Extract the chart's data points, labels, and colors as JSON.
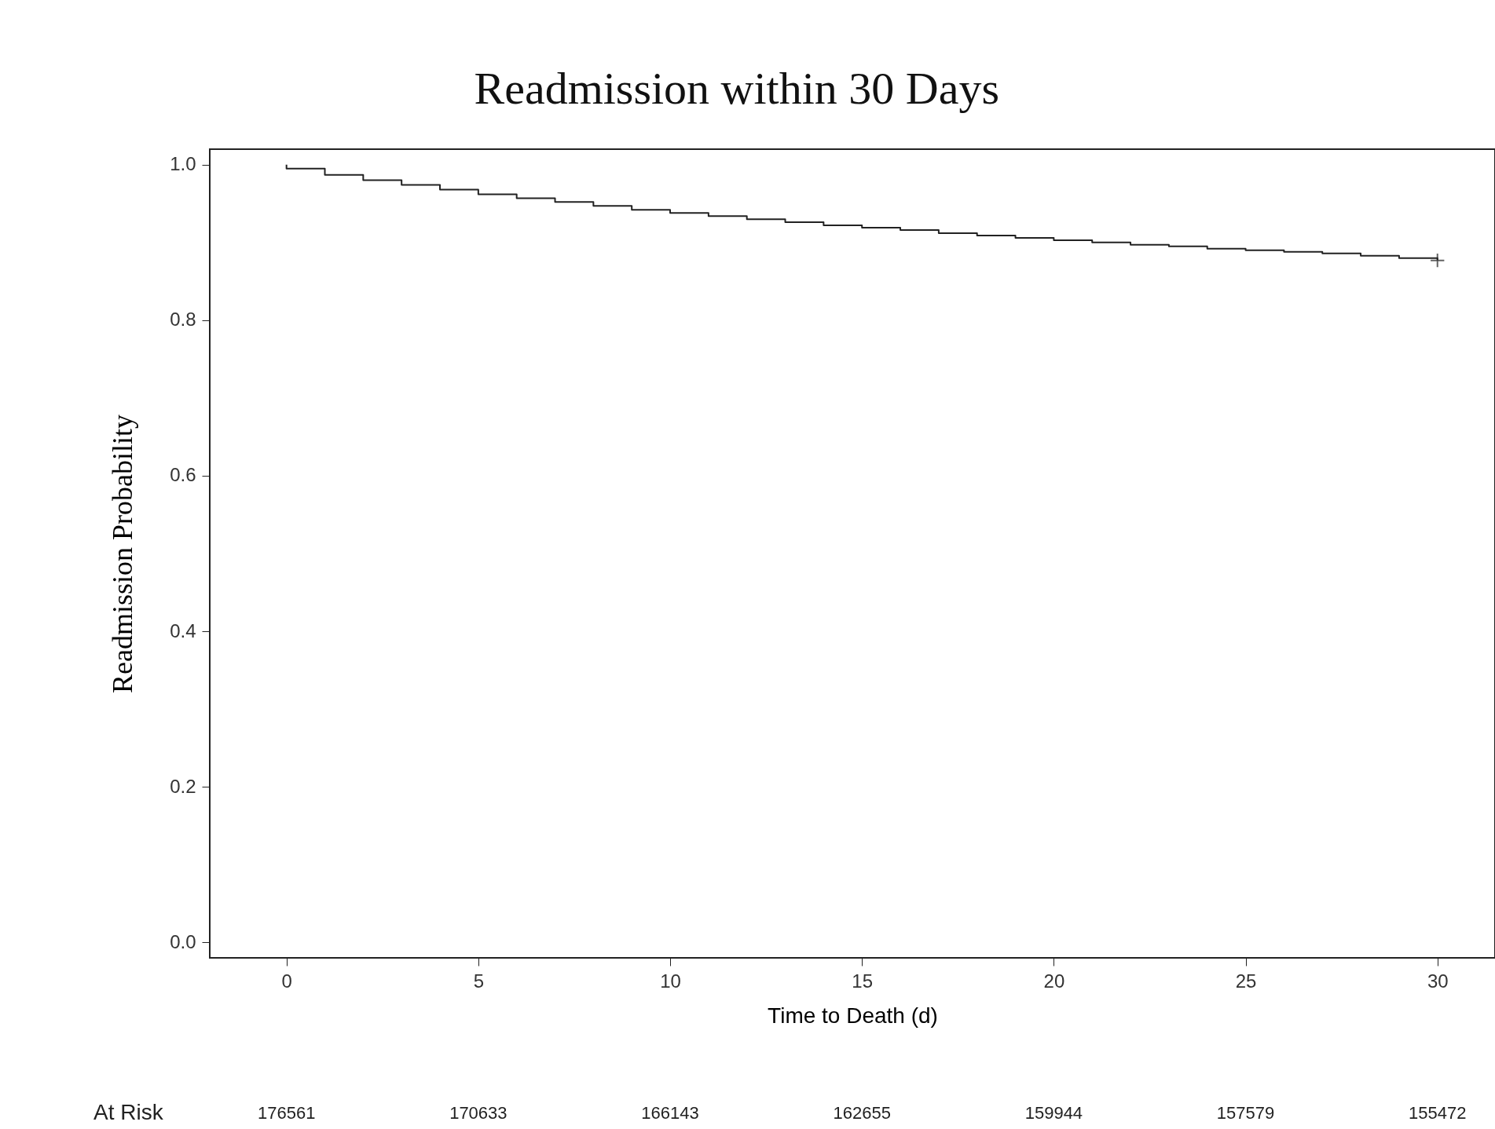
{
  "chart_data": {
    "type": "step",
    "title": "Readmission within 30 Days",
    "xlabel": "Time to Death (d)",
    "ylabel": "Readmission Probability",
    "x": [
      0,
      0,
      1,
      2,
      3,
      4,
      5,
      6,
      7,
      8,
      9,
      10,
      11,
      12,
      13,
      14,
      15,
      16,
      17,
      18,
      19,
      20,
      21,
      22,
      23,
      24,
      25,
      26,
      27,
      28,
      29,
      30
    ],
    "series": [
      {
        "color": "#222222",
        "values": [
          1.0,
          0.995,
          0.987,
          0.98,
          0.974,
          0.968,
          0.962,
          0.957,
          0.952,
          0.947,
          0.942,
          0.938,
          0.934,
          0.93,
          0.926,
          0.922,
          0.919,
          0.916,
          0.912,
          0.909,
          0.906,
          0.903,
          0.9,
          0.897,
          0.895,
          0.892,
          0.89,
          0.888,
          0.886,
          0.883,
          0.88,
          0.877
        ]
      },
      {
        "type": "scatter",
        "marker": "cross",
        "color": "#222222",
        "x": [
          30
        ],
        "values": [
          0.877
        ]
      }
    ],
    "xlim": [
      -2,
      31.5
    ],
    "ylim": [
      -0.02,
      1.02
    ],
    "xticks": [
      0,
      5,
      10,
      15,
      20,
      25,
      30
    ],
    "yticks": [
      {
        "value": 0,
        "label": "0.0"
      },
      0.2,
      0.4,
      0.6,
      0.8,
      {
        "value": 1,
        "label": "1.0"
      }
    ],
    "grid": false,
    "annotations": [
      "At Risk",
      "176561",
      "170633",
      "166143",
      "162655",
      "159944",
      "157579",
      "155472"
    ]
  }
}
